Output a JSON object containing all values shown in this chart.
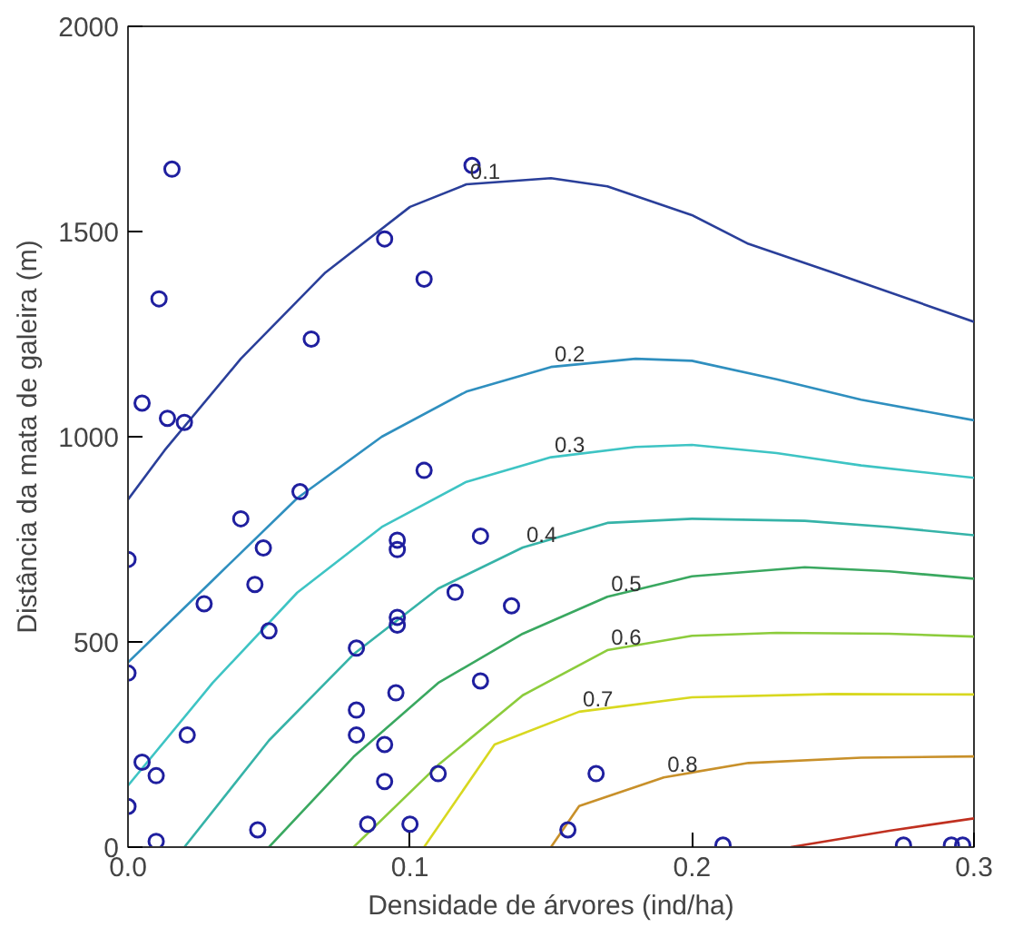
{
  "chart_data": {
    "type": "line",
    "xlabel": "Densidade de árvores (ind/ha)",
    "ylabel": "Distância da mata de galeira (m)",
    "xlim": [
      0,
      0.3
    ],
    "xticks": [
      {
        "value": 0,
        "label": "0.0"
      },
      0.1,
      0.2,
      0.3
    ],
    "ylim": [
      0,
      2000
    ],
    "yticks": [
      0,
      500,
      1000,
      1500,
      2000
    ],
    "grid": false,
    "line_style": "solid",
    "marker": "none",
    "series": [
      {
        "name": "0.1",
        "color": "#2a3f9a",
        "x": [
          0,
          0.013,
          0.04,
          0.07,
          0.1,
          0.12,
          0.15,
          0.17,
          0.2,
          0.22,
          0.25,
          0.3
        ],
        "values": [
          847,
          967,
          1190,
          1400,
          1560,
          1615,
          1630,
          1610,
          1540,
          1470,
          1400,
          1280
        ]
      },
      {
        "name": "0.2",
        "color": "#2f8fbf",
        "x": [
          0,
          0.03,
          0.06,
          0.09,
          0.12,
          0.15,
          0.18,
          0.2,
          0.23,
          0.26,
          0.3
        ],
        "values": [
          450,
          650,
          850,
          1000,
          1110,
          1170,
          1190,
          1185,
          1140,
          1090,
          1040
        ]
      },
      {
        "name": "0.3",
        "color": "#3ec4c4",
        "x": [
          0,
          0.03,
          0.06,
          0.09,
          0.12,
          0.15,
          0.18,
          0.2,
          0.23,
          0.26,
          0.3
        ],
        "values": [
          150,
          400,
          620,
          780,
          890,
          950,
          975,
          980,
          960,
          930,
          900
        ]
      },
      {
        "name": "0.4",
        "color": "#36b3a8",
        "x": [
          0.02,
          0.05,
          0.08,
          0.11,
          0.14,
          0.17,
          0.2,
          0.24,
          0.27,
          0.3
        ],
        "values": [
          0,
          260,
          470,
          630,
          730,
          790,
          800,
          795,
          780,
          760
        ]
      },
      {
        "name": "0.5",
        "color": "#3aa860",
        "x": [
          0.05,
          0.08,
          0.11,
          0.14,
          0.17,
          0.2,
          0.24,
          0.27,
          0.3
        ],
        "values": [
          0,
          220,
          400,
          520,
          610,
          660,
          682,
          672,
          654
        ]
      },
      {
        "name": "0.6",
        "color": "#8ccc3c",
        "x": [
          0.08,
          0.11,
          0.14,
          0.17,
          0.2,
          0.23,
          0.27,
          0.3
        ],
        "values": [
          0,
          200,
          370,
          480,
          515,
          522,
          520,
          513
        ]
      },
      {
        "name": "0.7",
        "color": "#d8d820",
        "x": [
          0.105,
          0.13,
          0.16,
          0.2,
          0.25,
          0.3
        ],
        "values": [
          0,
          250,
          330,
          365,
          373,
          372
        ]
      },
      {
        "name": "0.8",
        "color": "#c8902a",
        "x": [
          0.15,
          0.16,
          0.19,
          0.22,
          0.26,
          0.3
        ],
        "values": [
          0,
          100,
          170,
          205,
          218,
          221
        ]
      },
      {
        "color": "#c03020",
        "x": [
          0.235,
          0.27,
          0.3
        ],
        "values": [
          0,
          40,
          70
        ]
      },
      {
        "type": "scatter",
        "marker": "circle",
        "color": "#1f1f9f",
        "x": [
          0.0156,
          0.122,
          0.091,
          0.105,
          0.011,
          0.065,
          0.005,
          0.014,
          0.02,
          0.061,
          0.04,
          0.048,
          0.105,
          0.045,
          0,
          0.05,
          0.027,
          0.0955,
          0.0955,
          0.125,
          0.136,
          0.116,
          0.0955,
          0.0955,
          0.081,
          0,
          0.125,
          0.095,
          0.081,
          0.081,
          0.091,
          0.11,
          0.021,
          0.005,
          0.01,
          0.091,
          0,
          0.01,
          0.046,
          0.085,
          0.1,
          0.166,
          0.156,
          0.211,
          0.275,
          0.292,
          0.296
        ],
        "values": [
          1652,
          1661,
          1482,
          1384,
          1336,
          1238,
          1082,
          1045,
          1035,
          866,
          800,
          729,
          918,
          640,
          701,
          527,
          593,
          748,
          725,
          758,
          588,
          621,
          560,
          541,
          485,
          424,
          405,
          376,
          334,
          273,
          250,
          179,
          273,
          207,
          174,
          160,
          99,
          14,
          42,
          56,
          56,
          179,
          42,
          5,
          5,
          5,
          5
        ]
      }
    ]
  }
}
